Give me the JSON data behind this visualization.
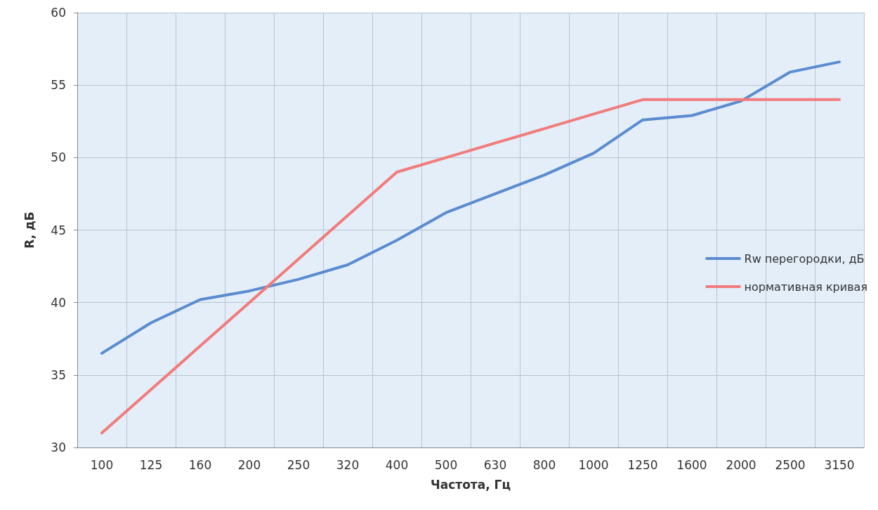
{
  "chart_data": {
    "type": "line",
    "xlabel": "Частота, Гц",
    "ylabel": "R, дБ",
    "categories": [
      "100",
      "125",
      "160",
      "200",
      "250",
      "320",
      "400",
      "500",
      "630",
      "800",
      "1000",
      "1250",
      "1600",
      "2000",
      "2500",
      "3150"
    ],
    "series": [
      {
        "name": "Rw перегородки, дБ",
        "color": "#5b8bd0",
        "values": [
          36.5,
          38.6,
          40.2,
          40.8,
          41.6,
          42.6,
          44.3,
          46.2,
          47.5,
          48.8,
          50.3,
          52.6,
          52.9,
          53.9,
          55.9,
          56.6
        ]
      },
      {
        "name": "нормативная кривая",
        "color": "#f27b7b",
        "values": [
          31,
          34,
          37,
          40,
          43,
          46,
          49,
          50,
          51,
          52,
          53,
          54,
          54,
          54,
          54,
          54
        ]
      }
    ],
    "ylim": [
      30,
      60
    ],
    "yticks": [
      30,
      35,
      40,
      45,
      50,
      55,
      60
    ],
    "grid": true,
    "legend": "right",
    "marker": "none",
    "line_style": "solid"
  }
}
